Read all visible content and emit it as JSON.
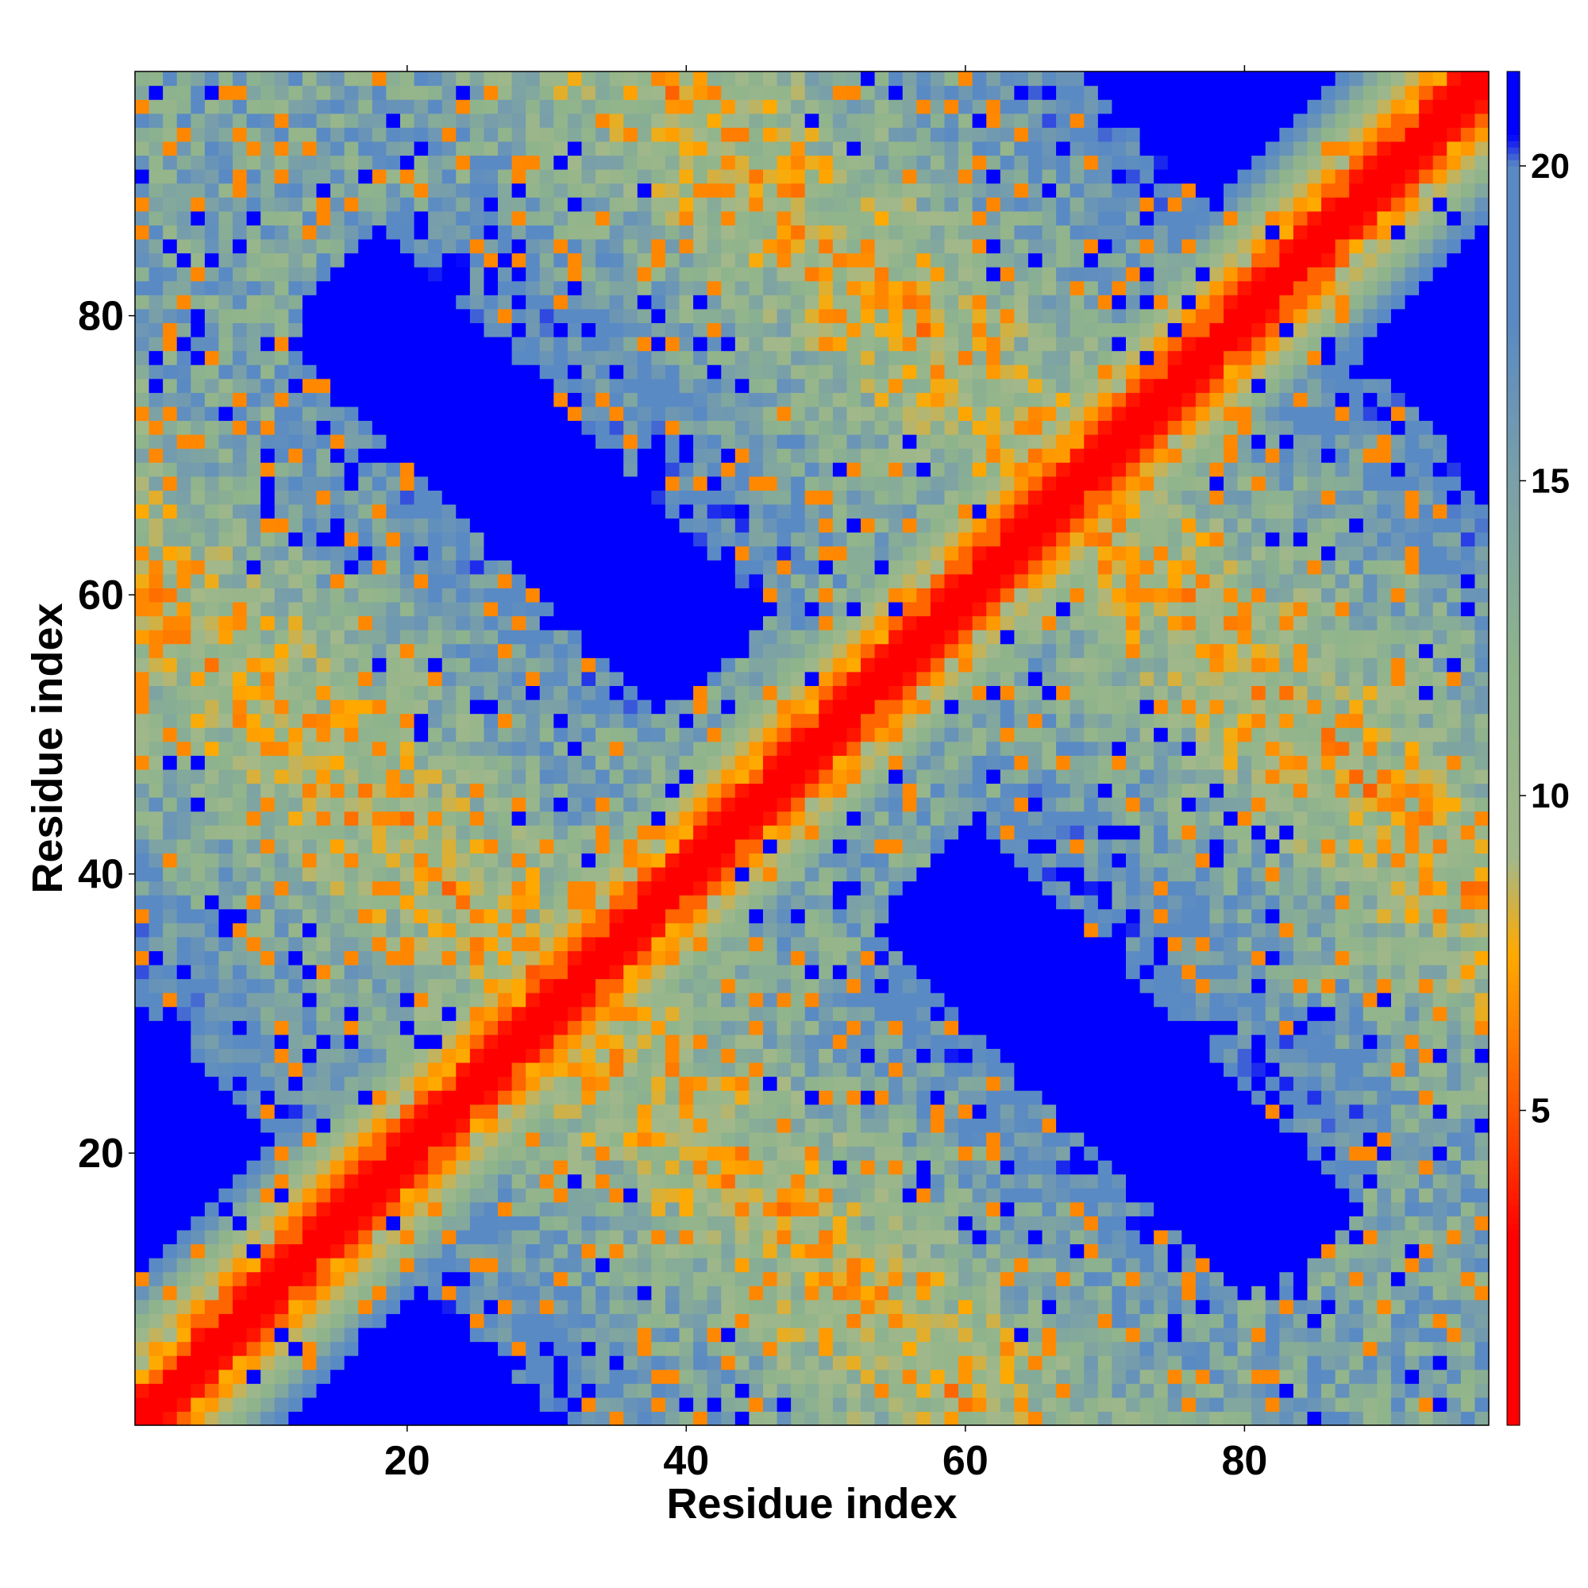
{
  "chart_data": {
    "type": "heatmap",
    "title": "",
    "xlabel": "Residue index",
    "ylabel": "Residue index",
    "n_residues": 97,
    "x_range": [
      1,
      97
    ],
    "y_range": [
      1,
      97
    ],
    "x_ticks": [
      20,
      40,
      60,
      80
    ],
    "y_ticks": [
      20,
      40,
      60,
      80
    ],
    "grid": false,
    "colorbar": {
      "position": "right",
      "range": [
        0,
        21.5
      ],
      "ticks": [
        5,
        10,
        15,
        20
      ],
      "stops": [
        {
          "value": 0.0,
          "color": "#ff0000"
        },
        {
          "value": 3.0,
          "color": "#ff0000"
        },
        {
          "value": 4.5,
          "color": "#ff4000"
        },
        {
          "value": 6.0,
          "color": "#ff7800"
        },
        {
          "value": 7.5,
          "color": "#ffaa00"
        },
        {
          "value": 9.0,
          "color": "#a3b88a"
        },
        {
          "value": 12.0,
          "color": "#8fb48c"
        },
        {
          "value": 15.0,
          "color": "#7aa0a8"
        },
        {
          "value": 17.5,
          "color": "#5a8ac4"
        },
        {
          "value": 20.0,
          "color": "#5a8ac4"
        },
        {
          "value": 20.5,
          "color": "#0000ff"
        },
        {
          "value": 21.5,
          "color": "#0000ff"
        }
      ],
      "no_contact_color": "#0000ff"
    },
    "structure": {
      "description_values": "distance map values in angstrom-like units, low near diagonal",
      "diagonal_value": 0.5,
      "near_diagonal_values": [
        0.5,
        3.5,
        6.0,
        8.0,
        10.5,
        13.0,
        16.0,
        18.5
      ],
      "off_diagonal_contact_values": [
        6.5,
        9.5,
        12.5,
        15.0,
        18.0
      ],
      "contact_band_pairs": [
        {
          "i_range": [
            1,
            97
          ],
          "j_center_offset": 0
        },
        {
          "i_range": [
            1,
            37
          ],
          "j_range": [
            45,
            97
          ]
        },
        {
          "i_range": [
            28,
            97
          ],
          "j_range": [
            1,
            28
          ]
        },
        {
          "i_range": [
            60,
            97
          ],
          "j_range": [
            28,
            68
          ]
        }
      ]
    }
  }
}
